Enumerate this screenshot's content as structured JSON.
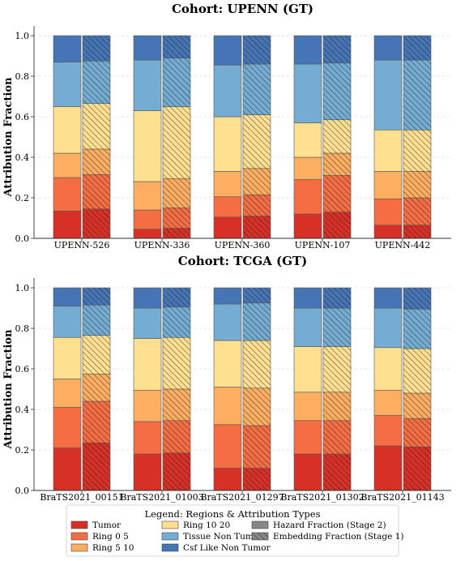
{
  "chart_data": [
    {
      "type": "bar",
      "subtype": "stacked-grouped",
      "title": "Cohort: UPENN (GT)",
      "ylabel": "Attribution Fraction",
      "xlabel": "",
      "ylim": [
        0,
        1.0
      ],
      "yticks": [
        "0.0",
        "0.2",
        "0.4",
        "0.6",
        "0.8",
        "1.0"
      ],
      "grid": "horizontal dashed",
      "categories": [
        "UPENN-526",
        "UPENN-336",
        "UPENN-360",
        "UPENN-107",
        "UPENN-442"
      ],
      "bars": [
        "Hazard Fraction (Stage 2)",
        "Embedding Fraction (Stage 1)"
      ],
      "regions": [
        "Tumor",
        "Ring 0 5",
        "Ring 5 10",
        "Ring 10 20",
        "Tissue Non Tumor",
        "Csf Like Non Tumor"
      ],
      "values": {
        "Hazard Fraction (Stage 2)": [
          [
            0.135,
            0.165,
            0.12,
            0.23,
            0.22,
            0.13
          ],
          [
            0.045,
            0.095,
            0.14,
            0.35,
            0.25,
            0.12
          ],
          [
            0.105,
            0.1,
            0.125,
            0.27,
            0.255,
            0.145
          ],
          [
            0.12,
            0.17,
            0.11,
            0.17,
            0.29,
            0.14
          ],
          [
            0.065,
            0.13,
            0.135,
            0.205,
            0.345,
            0.12
          ]
        ],
        "Embedding Fraction (Stage 1)": [
          [
            0.145,
            0.17,
            0.125,
            0.225,
            0.21,
            0.125
          ],
          [
            0.05,
            0.1,
            0.145,
            0.355,
            0.24,
            0.11
          ],
          [
            0.11,
            0.105,
            0.13,
            0.265,
            0.25,
            0.14
          ],
          [
            0.13,
            0.18,
            0.11,
            0.165,
            0.28,
            0.135
          ],
          [
            0.065,
            0.135,
            0.13,
            0.205,
            0.345,
            0.12
          ]
        ]
      }
    },
    {
      "type": "bar",
      "subtype": "stacked-grouped",
      "title": "Cohort: TCGA (GT)",
      "ylabel": "Attribution Fraction",
      "xlabel": "",
      "ylim": [
        0,
        1.0
      ],
      "yticks": [
        "0.0",
        "0.2",
        "0.4",
        "0.6",
        "0.8",
        "1.0"
      ],
      "grid": "horizontal dashed",
      "categories": [
        "BraTS2021_00151",
        "BraTS2021_01003",
        "BraTS2021_01297",
        "BraTS2021_01302",
        "BraTS2021_01143"
      ],
      "bars": [
        "Hazard Fraction (Stage 2)",
        "Embedding Fraction (Stage 1)"
      ],
      "regions": [
        "Tumor",
        "Ring 0 5",
        "Ring 5 10",
        "Ring 10 20",
        "Tissue Non Tumor",
        "Csf Like Non Tumor"
      ],
      "values": {
        "Hazard Fraction (Stage 2)": [
          [
            0.21,
            0.2,
            0.14,
            0.205,
            0.155,
            0.09
          ],
          [
            0.18,
            0.16,
            0.155,
            0.255,
            0.15,
            0.1
          ],
          [
            0.11,
            0.215,
            0.185,
            0.23,
            0.18,
            0.08
          ],
          [
            0.18,
            0.165,
            0.14,
            0.225,
            0.19,
            0.1
          ],
          [
            0.22,
            0.15,
            0.125,
            0.21,
            0.195,
            0.1
          ]
        ],
        "Embedding Fraction (Stage 1)": [
          [
            0.235,
            0.205,
            0.135,
            0.19,
            0.15,
            0.085
          ],
          [
            0.185,
            0.16,
            0.155,
            0.255,
            0.15,
            0.095
          ],
          [
            0.11,
            0.21,
            0.185,
            0.235,
            0.185,
            0.075
          ],
          [
            0.18,
            0.165,
            0.14,
            0.225,
            0.19,
            0.1
          ],
          [
            0.215,
            0.14,
            0.125,
            0.22,
            0.195,
            0.105
          ]
        ]
      }
    }
  ],
  "colors": {
    "Tumor": "#d73027",
    "Ring 0 5": "#f46d43",
    "Ring 5 10": "#fdae61",
    "Ring 10 20": "#fee090",
    "Tissue Non Tumor": "#74add1",
    "Csf Like Non Tumor": "#4575b4"
  },
  "legend": {
    "title": "Legend: Regions & Attribution Types",
    "placement": "bottom-center",
    "entries": [
      {
        "label": "Tumor",
        "color": "#d73027",
        "hatch": false
      },
      {
        "label": "Ring 0 5",
        "color": "#f46d43",
        "hatch": false
      },
      {
        "label": "Ring 5 10",
        "color": "#fdae61",
        "hatch": false
      },
      {
        "label": "Ring 10 20",
        "color": "#fee090",
        "hatch": false
      },
      {
        "label": "Tissue Non Tumor",
        "color": "#74add1",
        "hatch": false
      },
      {
        "label": "Csf Like Non Tumor",
        "color": "#4575b4",
        "hatch": false
      },
      {
        "label": "Hazard Fraction (Stage 2)",
        "color": "#888888",
        "hatch": false
      },
      {
        "label": "Embedding Fraction (Stage 1)",
        "color": "#888888",
        "hatch": true
      }
    ]
  }
}
